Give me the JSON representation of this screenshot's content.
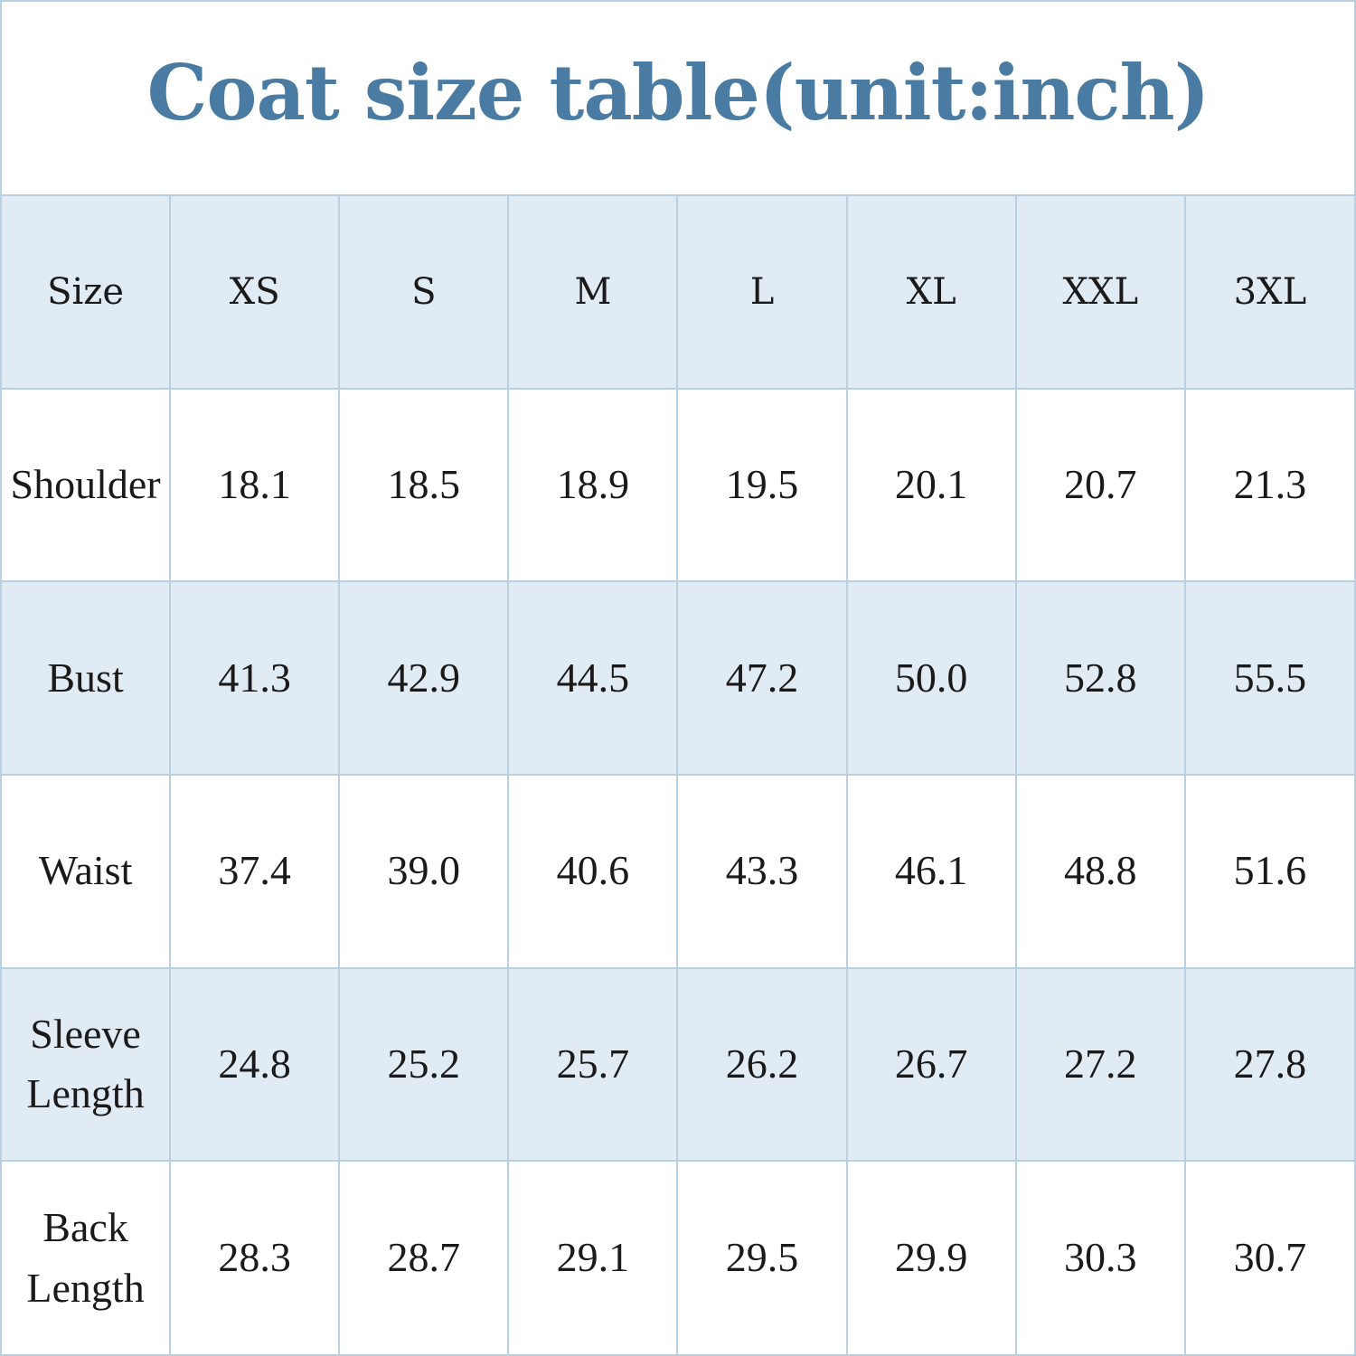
{
  "title": "Coat size table(unit:inch)",
  "table": {
    "header": [
      "Size",
      "XS",
      "S",
      "M",
      "L",
      "XL",
      "XXL",
      "3XL"
    ],
    "rows": [
      {
        "label": "Shoulder",
        "values": [
          "18.1",
          "18.5",
          "18.9",
          "19.5",
          "20.1",
          "20.7",
          "21.3"
        ]
      },
      {
        "label": "Bust",
        "values": [
          "41.3",
          "42.9",
          "44.5",
          "47.2",
          "50.0",
          "52.8",
          "55.5"
        ]
      },
      {
        "label": "Waist",
        "values": [
          "37.4",
          "39.0",
          "40.6",
          "43.3",
          "46.1",
          "48.8",
          "51.6"
        ]
      },
      {
        "label_lines": [
          "Sleeve",
          "Length"
        ],
        "values": [
          "24.8",
          "25.2",
          "25.7",
          "26.2",
          "26.7",
          "27.2",
          "27.8"
        ]
      },
      {
        "label_lines": [
          "Back",
          "Length"
        ],
        "values": [
          "28.3",
          "28.7",
          "29.1",
          "29.5",
          "29.9",
          "30.3",
          "30.7"
        ]
      }
    ]
  },
  "colors": {
    "title": "#4a7ba3",
    "shade": "#e1ebf4",
    "grid": "#b9cfe2"
  }
}
